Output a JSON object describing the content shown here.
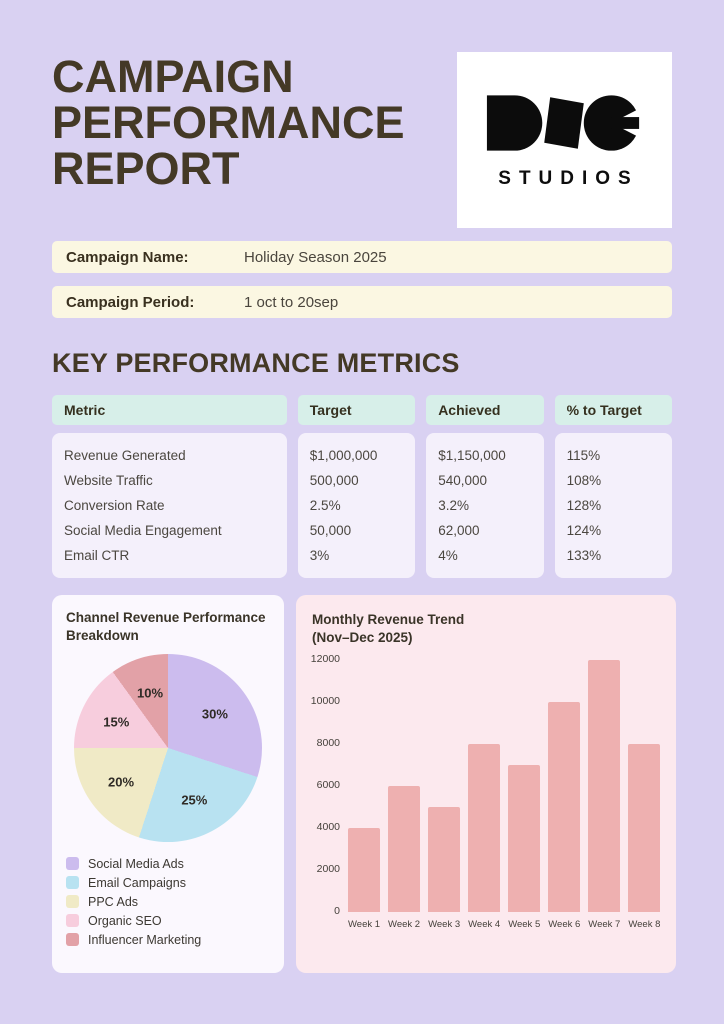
{
  "report": {
    "title_lines": [
      "CAMPAIGN",
      "PERFORMANCE",
      "REPORT"
    ]
  },
  "logo": {
    "brand": "DOG",
    "subtitle": "STUDIOS"
  },
  "fields": [
    {
      "label": "Campaign Name:",
      "value": "Holiday Season 2025"
    },
    {
      "label": "Campaign Period:",
      "value": "1 oct to 20sep"
    }
  ],
  "metrics": {
    "heading": "KEY PERFORMANCE METRICS",
    "columns": [
      "Metric",
      "Target",
      "Achieved",
      "% to Target"
    ],
    "rows": [
      [
        "Revenue Generated",
        "$1,000,000",
        "$1,150,000",
        "115%"
      ],
      [
        "Website Traffic",
        "500,000",
        "540,000",
        "108%"
      ],
      [
        "Conversion Rate",
        "2.5%",
        "3.2%",
        "128%"
      ],
      [
        "Social Media Engagement",
        "50,000",
        "62,000",
        "124%"
      ],
      [
        "Email CTR",
        "3%",
        "4%",
        "133%"
      ]
    ]
  },
  "chart_data": [
    {
      "type": "pie",
      "title": "Channel Revenue Performance Breakdown",
      "labels": [
        "Social Media Ads",
        "Email Campaigns",
        "PPC Ads",
        "Organic SEO",
        "Influencer Marketing"
      ],
      "values": [
        30,
        25,
        20,
        15,
        10
      ],
      "value_labels": [
        "30%",
        "25%",
        "20%",
        "15%",
        "10%"
      ],
      "colors": [
        "#ccbcee",
        "#b8e2f1",
        "#f0eac6",
        "#f7cddd",
        "#e2a1a7"
      ],
      "legend_position": "bottom"
    },
    {
      "type": "bar",
      "title": "Monthly Revenue Trend (Nov–Dec 2025)",
      "title_lines": [
        "Monthly Revenue Trend",
        "(Nov–Dec 2025)"
      ],
      "categories": [
        "Week 1",
        "Week 2",
        "Week 3",
        "Week 4",
        "Week 5",
        "Week 6",
        "Week 7",
        "Week 8"
      ],
      "values": [
        4000,
        6000,
        5000,
        8000,
        7000,
        10000,
        12000,
        8000
      ],
      "yticks": [
        0,
        2000,
        4000,
        6000,
        8000,
        10000,
        12000
      ],
      "ylim": [
        0,
        12000
      ],
      "bar_color": "#eeb0b0",
      "grid": false,
      "xlabel": "",
      "ylabel": ""
    }
  ],
  "colors": {
    "page_bg": "#d9d1f2",
    "ink": "#443926",
    "cream": "#fbf7e2",
    "mint": "#d7efe9",
    "cell": "#f4f0fb",
    "card_left": "#fbf8fe",
    "card_right": "#fce9ee",
    "bar": "#eeb0b0"
  }
}
